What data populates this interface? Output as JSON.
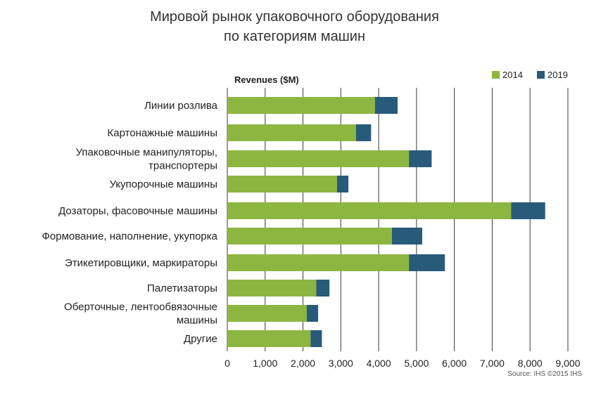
{
  "title_lines": [
    "Мировой рынок упаковочного оборудования",
    "по категориям машин"
  ],
  "source": {
    "text": "Source: IHS    ©2015 IHS"
  },
  "colors": {
    "series_2014": "#8db641",
    "series_2019": "#285a7a",
    "grid": "#3a3a3a",
    "text": "#222222"
  },
  "chart_data": {
    "type": "bar",
    "orientation": "horizontal",
    "stacked": true,
    "title": "Мировой рынок упаковочного оборудования по категориям машин",
    "xlabel": "",
    "ylabel": "Revenues ($M)",
    "xlim": [
      0,
      9000
    ],
    "xticks": [
      0,
      1000,
      2000,
      3000,
      4000,
      5000,
      6000,
      7000,
      8000,
      9000
    ],
    "xtick_labels": [
      "0",
      "1,000",
      "2,000",
      "3,000",
      "4,000",
      "5,000",
      "6,000",
      "7,000",
      "8,000",
      "9,000"
    ],
    "grid": true,
    "legend_position": "top-right",
    "categories": [
      "Линии розлива",
      "Картонажные машины",
      "Упаковочные манипуляторы,\nтранспортеры",
      "Укупорочные машины",
      "Дозаторы, фасовочные машины",
      "Формование, наполнение, укупорка",
      "Этикетировщики, маркираторы",
      "Палетизаторы",
      "Оберточные, лентообвязочные\nмашины",
      "Другие"
    ],
    "series": [
      {
        "name": "2014",
        "values": [
          3900,
          3400,
          4800,
          2900,
          7500,
          4350,
          4800,
          2350,
          2100,
          2200
        ]
      },
      {
        "name": "2019",
        "values": [
          600,
          400,
          600,
          300,
          900,
          800,
          950,
          350,
          300,
          300
        ]
      }
    ]
  }
}
